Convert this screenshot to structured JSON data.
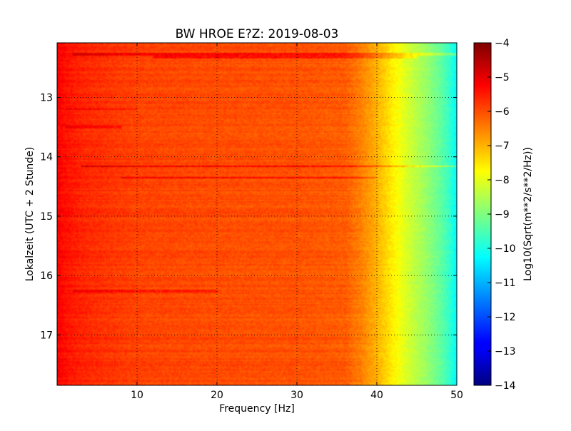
{
  "chart_data": {
    "type": "heatmap",
    "title": "BW HROE E?Z: 2019-08-03",
    "xlabel": "Frequency [Hz]",
    "ylabel": "Lokalzeit (UTC + 2 Stunde)",
    "xlim": [
      0,
      50
    ],
    "ylim": [
      12.08,
      17.85
    ],
    "y_inverted": true,
    "x_ticks": [
      10,
      20,
      30,
      40,
      50
    ],
    "x_tick_labels": [
      "10",
      "20",
      "30",
      "40",
      "50"
    ],
    "y_ticks": [
      13,
      14,
      15,
      16,
      17
    ],
    "y_tick_labels": [
      "13",
      "14",
      "15",
      "16",
      "17"
    ],
    "grid": true,
    "colormap": "jet",
    "colorbar": {
      "label": "Log10(Sqrt(m**2/s**2/Hz))",
      "range": [
        -14,
        -4
      ],
      "ticks": [
        -4,
        -5,
        -6,
        -7,
        -8,
        -9,
        -10,
        -11,
        -12,
        -13,
        -14
      ],
      "tick_labels": [
        "−4",
        "−5",
        "−6",
        "−7",
        "−8",
        "−9",
        "−10",
        "−11",
        "−12",
        "−13",
        "−14"
      ]
    },
    "spectral_profile": {
      "frequency_hz": [
        0,
        1,
        3,
        5,
        10,
        20,
        30,
        36,
        38,
        40,
        42,
        44,
        46,
        48,
        49,
        50
      ],
      "log_level": [
        -5.2,
        -5.4,
        -5.6,
        -5.7,
        -5.9,
        -6.0,
        -6.05,
        -6.15,
        -6.5,
        -7.0,
        -7.6,
        -8.2,
        -8.7,
        -9.3,
        -9.7,
        -10.3
      ]
    },
    "bands": [
      {
        "time": 12.28,
        "f_start": 2,
        "f_end": 50,
        "delta": 0.8
      },
      {
        "time": 12.32,
        "f_start": 12,
        "f_end": 45,
        "delta": 0.7
      },
      {
        "time": 14.16,
        "f_start": 3,
        "f_end": 50,
        "delta": 1.2
      },
      {
        "time": 14.35,
        "f_start": 8,
        "f_end": 40,
        "delta": 0.8
      },
      {
        "time": 16.27,
        "f_start": 2,
        "f_end": 20,
        "delta": 0.6
      },
      {
        "time": 13.2,
        "f_start": 1,
        "f_end": 10,
        "delta": 0.5
      },
      {
        "time": 13.5,
        "f_start": 1,
        "f_end": 8,
        "delta": 0.6
      }
    ]
  }
}
